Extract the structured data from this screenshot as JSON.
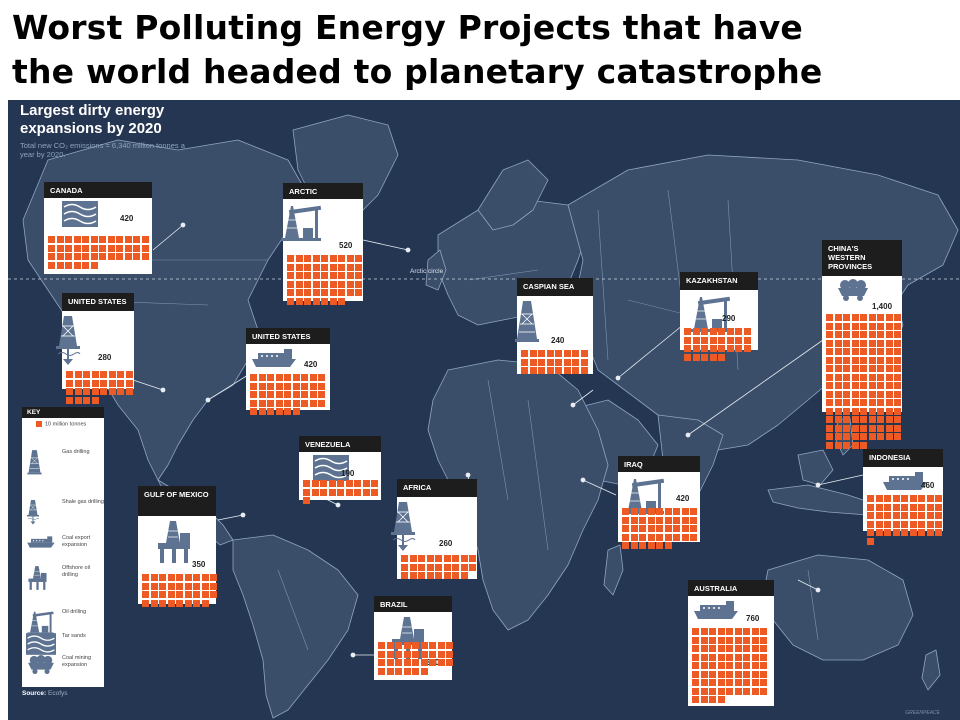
{
  "headline": {
    "line1": "Worst Polluting Energy  Projects that  have",
    "line2": "the world headed to planetary catastrophe"
  },
  "map": {
    "title_line1": "Largest dirty energy",
    "title_line2": "expansions by 2020",
    "subtitle": "Total new CO₂ emissions = 6,340 million tonnes a year by 2020.",
    "arctic_circle_label": "Arctic circle",
    "source_label": "Source:",
    "source_value": "Ecofys",
    "watermark": "GREENPEACE",
    "colors": {
      "ocean": "#253652",
      "land": "#3a4d69",
      "borders": "#8fa6c4",
      "unit": "#ee5a24",
      "header": "#1d1d1d"
    }
  },
  "key": {
    "title": "KEY",
    "items": [
      {
        "icon": "square-unit-icon",
        "label": "10 million tonnes"
      },
      {
        "icon": "gas-drilling-icon",
        "label": "Gas drilling"
      },
      {
        "icon": "shale-gas-drilling-icon",
        "label": "Shale gas drilling"
      },
      {
        "icon": "coal-export-ship-icon",
        "label": "Coal export expansion"
      },
      {
        "icon": "offshore-oil-rig-icon",
        "label": "Offshore oil drilling"
      },
      {
        "icon": "oil-pump-icon",
        "label": "Oil drilling"
      },
      {
        "icon": "tar-sands-icon",
        "label": "Tar sands"
      },
      {
        "icon": "coal-cart-icon",
        "label": "Coal mining expansion"
      }
    ]
  },
  "projects": [
    {
      "id": "canada",
      "region": "CANADA",
      "type": "Tar sands",
      "icon": "tar-sands-icon",
      "value": "420",
      "units": 42
    },
    {
      "id": "arctic",
      "region": "ARCTIC",
      "type": "Oil drilling",
      "icon": "oil-pump-icon",
      "value": "520",
      "units": 52
    },
    {
      "id": "us-shale",
      "region": "UNITED STATES",
      "type": "Shale gas drilling",
      "icon": "shale-gas-drilling-icon",
      "value": "280",
      "units": 28
    },
    {
      "id": "us-coal",
      "region": "UNITED STATES",
      "type": "Coal export expansion",
      "icon": "coal-export-ship-icon",
      "value": "420",
      "units": 42
    },
    {
      "id": "caspian",
      "region": "CASPIAN SEA",
      "type": "Gas drilling",
      "icon": "gas-drilling-icon",
      "value": "240",
      "units": 24
    },
    {
      "id": "kazakhstan",
      "region": "KAZAKHSTAN",
      "type": "Oil drilling",
      "icon": "oil-pump-icon",
      "value": "290",
      "units": 29
    },
    {
      "id": "china",
      "region": "CHINA'S WESTERN PROVINCES",
      "type": "Coal mining expansion",
      "icon": "coal-cart-icon",
      "value": "1,400",
      "units": 140
    },
    {
      "id": "venezuela",
      "region": "VENEZUELA",
      "type": "Tar sands",
      "icon": "tar-sands-icon",
      "value": "190",
      "units": 19
    },
    {
      "id": "africa",
      "region": "AFRICA",
      "type": "Shale gas drilling",
      "icon": "shale-gas-drilling-icon",
      "value": "260",
      "units": 26
    },
    {
      "id": "iraq",
      "region": "IRAQ",
      "type": "Oil drilling",
      "icon": "oil-pump-icon",
      "value": "420",
      "units": 42
    },
    {
      "id": "indonesia",
      "region": "INDONESIA",
      "type": "Coal export expansion",
      "icon": "coal-export-ship-icon",
      "value": "460",
      "units": 46
    },
    {
      "id": "gulf",
      "region": "GULF OF MEXICO",
      "type": "Offshore oil drilling",
      "icon": "offshore-oil-rig-icon",
      "value": "350",
      "units": 35
    },
    {
      "id": "brazil",
      "region": "BRAZIL",
      "type": "Offshore oil drilling",
      "icon": "offshore-oil-rig-icon",
      "value": "330",
      "units": 33
    },
    {
      "id": "australia",
      "region": "AUSTRALIA",
      "type": "Coal export expansion",
      "icon": "coal-export-ship-icon",
      "value": "760",
      "units": 76
    }
  ]
}
